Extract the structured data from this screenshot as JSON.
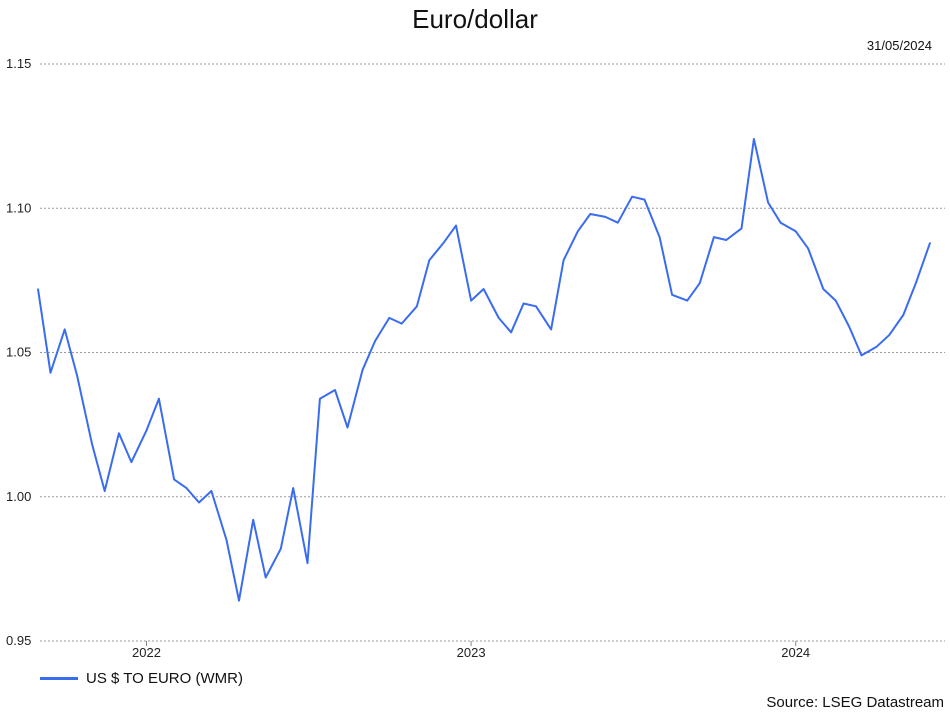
{
  "chart_data": {
    "type": "line",
    "title": "Euro/dollar",
    "date_label": "31/05/2024",
    "source": "Source: LSEG Datastream",
    "ylim": [
      0.95,
      1.15
    ],
    "yticks": [
      "0.95",
      "1.00",
      "1.05",
      "1.10",
      "1.15"
    ],
    "xticks": [
      "2022",
      "2023",
      "2024"
    ],
    "grid": true,
    "legend_position": "bottom-left",
    "series": [
      {
        "name": "US $ TO EURO (WMR)",
        "color": "#3a6cf0",
        "x": [
          "2021-09-01",
          "2021-09-15",
          "2021-10-01",
          "2021-10-15",
          "2021-11-01",
          "2021-11-15",
          "2021-12-01",
          "2021-12-15",
          "2022-01-01",
          "2022-01-15",
          "2022-02-01",
          "2022-02-15",
          "2022-03-01",
          "2022-03-15",
          "2022-04-01",
          "2022-04-15",
          "2022-05-01",
          "2022-05-15",
          "2022-06-01",
          "2022-06-15",
          "2022-07-01",
          "2022-07-15",
          "2022-08-01",
          "2022-08-15",
          "2022-09-01",
          "2022-09-15",
          "2022-10-01",
          "2022-10-15",
          "2022-11-01",
          "2022-11-15",
          "2022-12-01",
          "2022-12-15",
          "2023-01-01",
          "2023-01-15",
          "2023-02-01",
          "2023-02-15",
          "2023-03-01",
          "2023-03-15",
          "2023-04-01",
          "2023-04-15",
          "2023-05-01",
          "2023-05-15",
          "2023-06-01",
          "2023-06-15",
          "2023-07-01",
          "2023-07-15",
          "2023-08-01",
          "2023-08-15",
          "2023-09-01",
          "2023-09-15",
          "2023-10-01",
          "2023-10-15",
          "2023-11-01",
          "2023-11-15",
          "2023-12-01",
          "2023-12-15",
          "2024-01-01",
          "2024-01-15",
          "2024-02-01",
          "2024-02-15",
          "2024-03-01",
          "2024-03-15",
          "2024-04-01",
          "2024-04-15",
          "2024-05-01",
          "2024-05-15",
          "2024-05-31"
        ],
        "values": [
          1.072,
          1.043,
          1.058,
          1.042,
          1.018,
          1.002,
          1.022,
          1.012,
          1.023,
          1.034,
          1.006,
          1.003,
          0.998,
          1.002,
          0.985,
          0.964,
          0.992,
          0.972,
          0.982,
          1.003,
          0.977,
          1.034,
          1.037,
          1.024,
          1.044,
          1.054,
          1.062,
          1.06,
          1.066,
          1.082,
          1.088,
          1.094,
          1.068,
          1.072,
          1.062,
          1.057,
          1.067,
          1.066,
          1.058,
          1.082,
          1.092,
          1.098,
          1.097,
          1.095,
          1.104,
          1.103,
          1.09,
          1.07,
          1.068,
          1.074,
          1.09,
          1.089,
          1.093,
          1.124,
          1.102,
          1.095,
          1.092,
          1.086,
          1.072,
          1.068,
          1.059,
          1.049,
          1.052,
          1.056,
          1.063,
          1.074,
          1.088
        ]
      }
    ]
  }
}
